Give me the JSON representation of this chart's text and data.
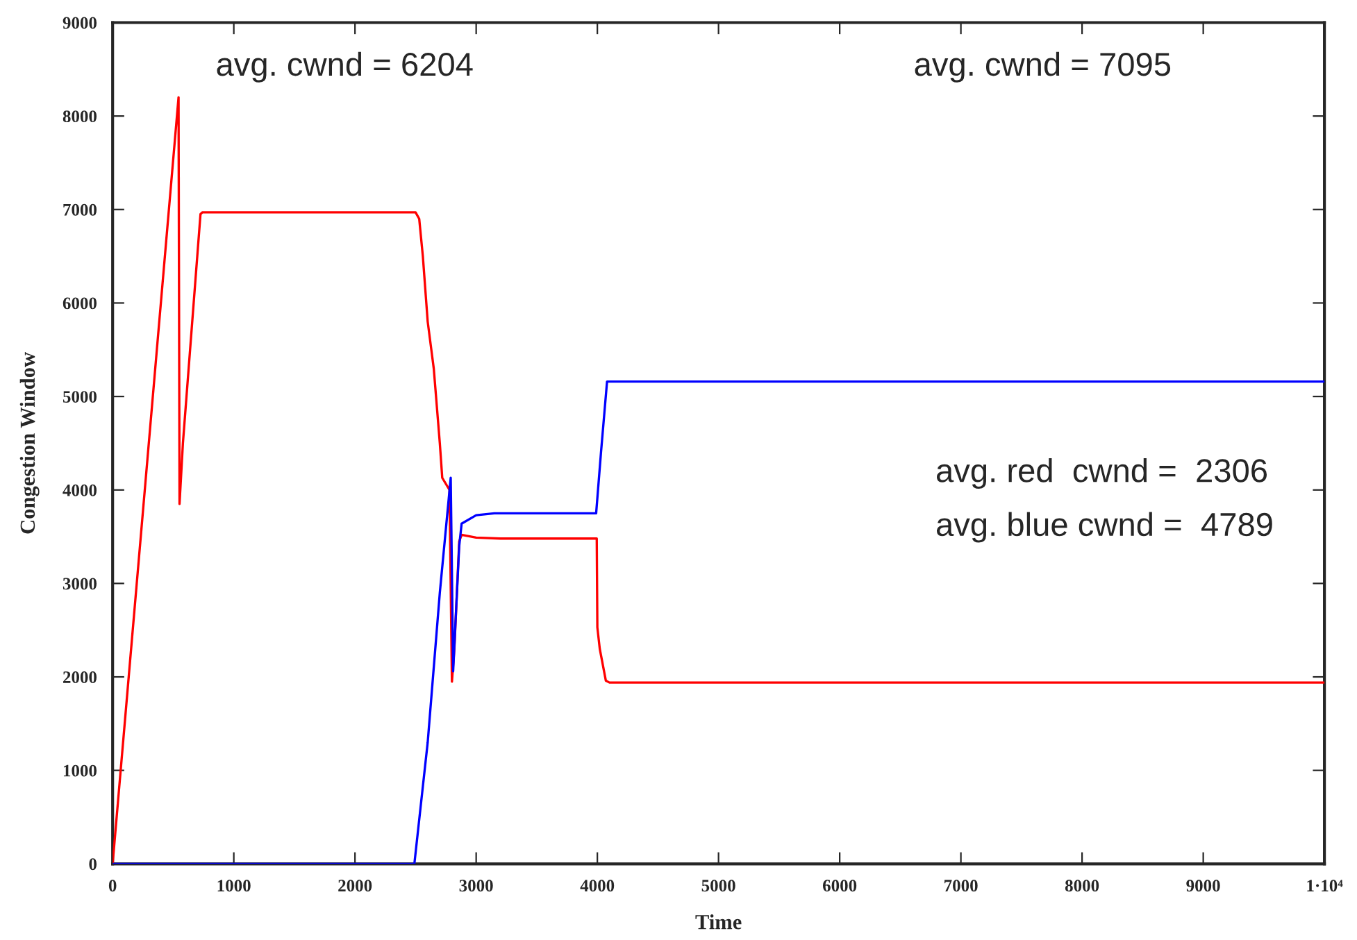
{
  "chart_data": {
    "type": "line",
    "xlabel": "Time",
    "ylabel": "Congestion Window",
    "xlim": [
      0,
      10000
    ],
    "ylim": [
      0,
      9000
    ],
    "xticks": [
      0,
      1000,
      2000,
      3000,
      4000,
      5000,
      6000,
      7000,
      8000,
      9000,
      {
        "value": 10000,
        "label": "1·10⁴"
      }
    ],
    "yticks": [
      0,
      1000,
      2000,
      3000,
      4000,
      5000,
      6000,
      7000,
      8000,
      9000
    ],
    "grid": false,
    "marker": "none",
    "line_style": "solid",
    "series": [
      {
        "color": "#ff0000",
        "x": [
          0,
          544,
          552,
          580,
          725,
          740,
          2500,
          2530,
          2560,
          2600,
          2650,
          2700,
          2720,
          2780,
          2800,
          2820,
          2860,
          2880,
          3000,
          3200,
          3995,
          4000,
          4020,
          4070,
          4100,
          10000
        ],
        "values": [
          0,
          8200,
          3850,
          4500,
          6950,
          6970,
          6970,
          6900,
          6500,
          5800,
          5300,
          4500,
          4130,
          4000,
          1950,
          2300,
          3450,
          3520,
          3490,
          3480,
          3480,
          2530,
          2300,
          1960,
          1940,
          1940
        ]
      },
      {
        "color": "#0000ff",
        "x": [
          0,
          2490,
          2600,
          2700,
          2790,
          2810,
          2860,
          2880,
          3000,
          3150,
          3990,
          4030,
          4080,
          10000
        ],
        "values": [
          0,
          0,
          1300,
          2900,
          4130,
          2060,
          3400,
          3640,
          3730,
          3750,
          3750,
          4400,
          5160,
          5160
        ]
      }
    ],
    "annotations": [
      "avg. cwnd = 6204",
      "avg. cwnd = 7095",
      "avg. red  cwnd =  2306",
      "avg. blue cwnd =  4789"
    ]
  }
}
